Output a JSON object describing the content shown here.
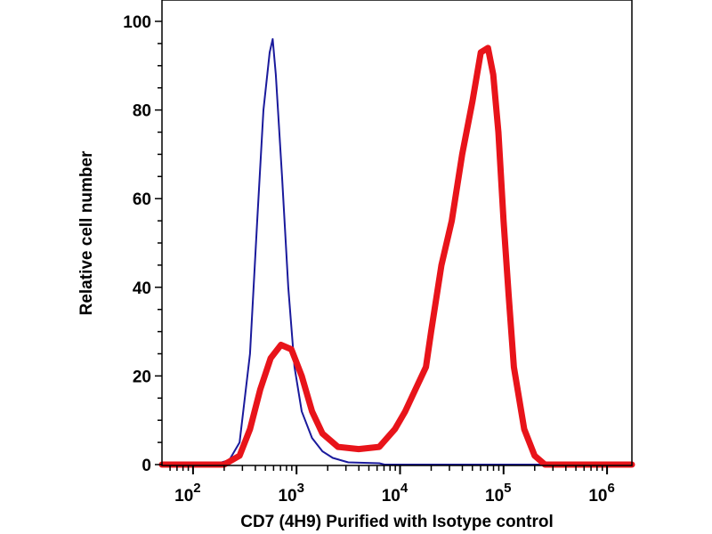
{
  "chart_data": {
    "type": "line",
    "title": "",
    "xlabel": "CD7 (4H9) Purified with Isotype control",
    "ylabel": "Relative cell number",
    "x_scale": "log10",
    "xlim_log10": [
      1.7,
      6.24
    ],
    "ylim": [
      0,
      100
    ],
    "x_ticks": [
      {
        "base": "10",
        "exp": "2",
        "v": 2
      },
      {
        "base": "10",
        "exp": "3",
        "v": 3
      },
      {
        "base": "10",
        "exp": "4",
        "v": 4
      },
      {
        "base": "10",
        "exp": "5",
        "v": 5
      },
      {
        "base": "10",
        "exp": "6",
        "v": 6
      }
    ],
    "y_ticks": [
      "0",
      "20",
      "40",
      "60",
      "80",
      "100"
    ],
    "grid": false,
    "series": [
      {
        "name": "Isotype control",
        "color": "#1a1a9c",
        "x_log10": [
          1.7,
          2.2,
          2.35,
          2.45,
          2.55,
          2.62,
          2.68,
          2.74,
          2.77,
          2.8,
          2.86,
          2.92,
          2.98,
          3.05,
          3.15,
          3.25,
          3.35,
          3.5,
          3.8,
          3.85,
          6.24
        ],
        "y": [
          0,
          0,
          1,
          5,
          25,
          55,
          80,
          93,
          96,
          88,
          65,
          40,
          22,
          12,
          6,
          3,
          1.5,
          0.5,
          0.3,
          0,
          0
        ]
      },
      {
        "name": "CD7 (4H9) Purified",
        "color": "#e8141a",
        "x_log10": [
          1.7,
          2.3,
          2.45,
          2.55,
          2.65,
          2.75,
          2.85,
          2.95,
          3.05,
          3.15,
          3.25,
          3.4,
          3.6,
          3.8,
          3.95,
          4.05,
          4.15,
          4.25,
          4.3,
          4.4,
          4.5,
          4.6,
          4.7,
          4.78,
          4.85,
          4.9,
          4.95,
          5.0,
          5.05,
          5.1,
          5.2,
          5.3,
          5.4,
          6.24
        ],
        "y": [
          0,
          0,
          2,
          8,
          17,
          24,
          27,
          26,
          20,
          12,
          7,
          4,
          3.5,
          4,
          8,
          12,
          17,
          22,
          30,
          45,
          55,
          70,
          82,
          93,
          94,
          88,
          75,
          55,
          38,
          22,
          8,
          2,
          0,
          0
        ]
      }
    ]
  }
}
